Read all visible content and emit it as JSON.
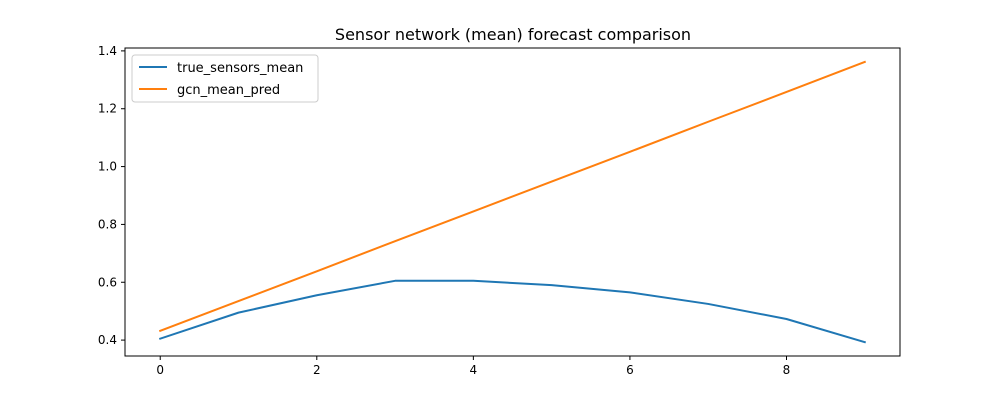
{
  "chart_data": {
    "type": "line",
    "title": "Sensor network (mean) forecast comparison",
    "xlabel": "",
    "ylabel": "",
    "x": [
      0,
      1,
      2,
      3,
      4,
      5,
      6,
      7,
      8,
      9
    ],
    "xlim": [
      -0.45,
      9.45
    ],
    "ylim": [
      0.345,
      1.41
    ],
    "xticks": [
      0,
      2,
      4,
      6,
      8
    ],
    "yticks": [
      0.4,
      0.6,
      0.8,
      1.0,
      1.2,
      1.4
    ],
    "xtick_labels": [
      "0",
      "2",
      "4",
      "6",
      "8"
    ],
    "ytick_labels": [
      "0.4",
      "0.6",
      "0.8",
      "1.0",
      "1.2",
      "1.4"
    ],
    "grid": false,
    "legend_position": "top-left",
    "series": [
      {
        "name": "true_sensors_mean",
        "color": "#1f77b4",
        "values": [
          0.405,
          0.495,
          0.555,
          0.605,
          0.605,
          0.59,
          0.565,
          0.525,
          0.473,
          0.393
        ]
      },
      {
        "name": "gcn_mean_pred",
        "color": "#ff7f0e",
        "values": [
          0.432,
          0.535,
          0.638,
          0.742,
          0.845,
          0.948,
          1.051,
          1.155,
          1.258,
          1.362
        ]
      }
    ]
  }
}
